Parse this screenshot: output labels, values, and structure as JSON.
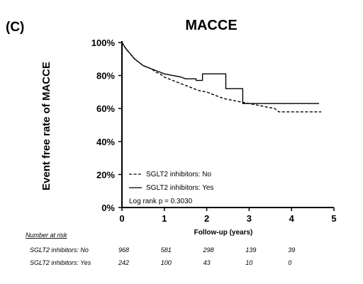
{
  "chart_data": {
    "type": "line",
    "panel_label": "(C)",
    "title": "MACCE",
    "xlabel": "Follow-up (years)",
    "ylabel": "Event free rate of MACCE",
    "xlim": [
      0,
      5
    ],
    "ylim": [
      0,
      100
    ],
    "x_ticks": [
      "0",
      "1",
      "2",
      "3",
      "4",
      "5"
    ],
    "y_ticks": [
      "0%",
      "20%",
      "40%",
      "60%",
      "80%",
      "100%"
    ],
    "grid": false,
    "legend_position": "bottom-left",
    "annotation": "Log rank p = 0.3030",
    "series": [
      {
        "name": "SGLT2 inhibitors: No",
        "style": "dashed",
        "points": [
          [
            0,
            100
          ],
          [
            0.05,
            98
          ],
          [
            0.1,
            96
          ],
          [
            0.2,
            93
          ],
          [
            0.3,
            90
          ],
          [
            0.4,
            88
          ],
          [
            0.5,
            86
          ],
          [
            0.6,
            85
          ],
          [
            0.7,
            84
          ],
          [
            0.8,
            82
          ],
          [
            0.9,
            81
          ],
          [
            1.0,
            79
          ],
          [
            1.2,
            77
          ],
          [
            1.4,
            75
          ],
          [
            1.6,
            73
          ],
          [
            1.8,
            71
          ],
          [
            2.0,
            70
          ],
          [
            2.2,
            68
          ],
          [
            2.4,
            66
          ],
          [
            2.6,
            65
          ],
          [
            2.8,
            64
          ],
          [
            3.0,
            63
          ],
          [
            3.2,
            62
          ],
          [
            3.4,
            61
          ],
          [
            3.6,
            60
          ],
          [
            3.7,
            58
          ],
          [
            3.9,
            58
          ],
          [
            4.7,
            58
          ]
        ]
      },
      {
        "name": "SGLT2 inhibitors: Yes",
        "style": "solid",
        "points": [
          [
            0,
            100
          ],
          [
            0.05,
            98
          ],
          [
            0.1,
            96
          ],
          [
            0.2,
            93
          ],
          [
            0.3,
            90
          ],
          [
            0.4,
            88
          ],
          [
            0.5,
            86
          ],
          [
            0.6,
            85
          ],
          [
            0.8,
            83
          ],
          [
            0.9,
            82
          ],
          [
            1.0,
            81
          ],
          [
            1.2,
            80
          ],
          [
            1.4,
            79
          ],
          [
            1.5,
            78
          ],
          [
            1.75,
            78
          ],
          [
            1.75,
            77
          ],
          [
            1.9,
            77
          ],
          [
            1.9,
            81
          ],
          [
            2.45,
            81
          ],
          [
            2.45,
            72
          ],
          [
            2.85,
            72
          ],
          [
            2.85,
            63
          ],
          [
            4.65,
            63
          ]
        ]
      }
    ],
    "number_at_risk": {
      "title": "Number at risk",
      "rows": [
        {
          "label": "SGLT2 inhibitors: No",
          "values": [
            "968",
            "581",
            "298",
            "139",
            "39"
          ]
        },
        {
          "label": "SGLT2 inhibitors: Yes",
          "values": [
            "242",
            "100",
            "43",
            "10",
            "0"
          ]
        }
      ]
    }
  }
}
